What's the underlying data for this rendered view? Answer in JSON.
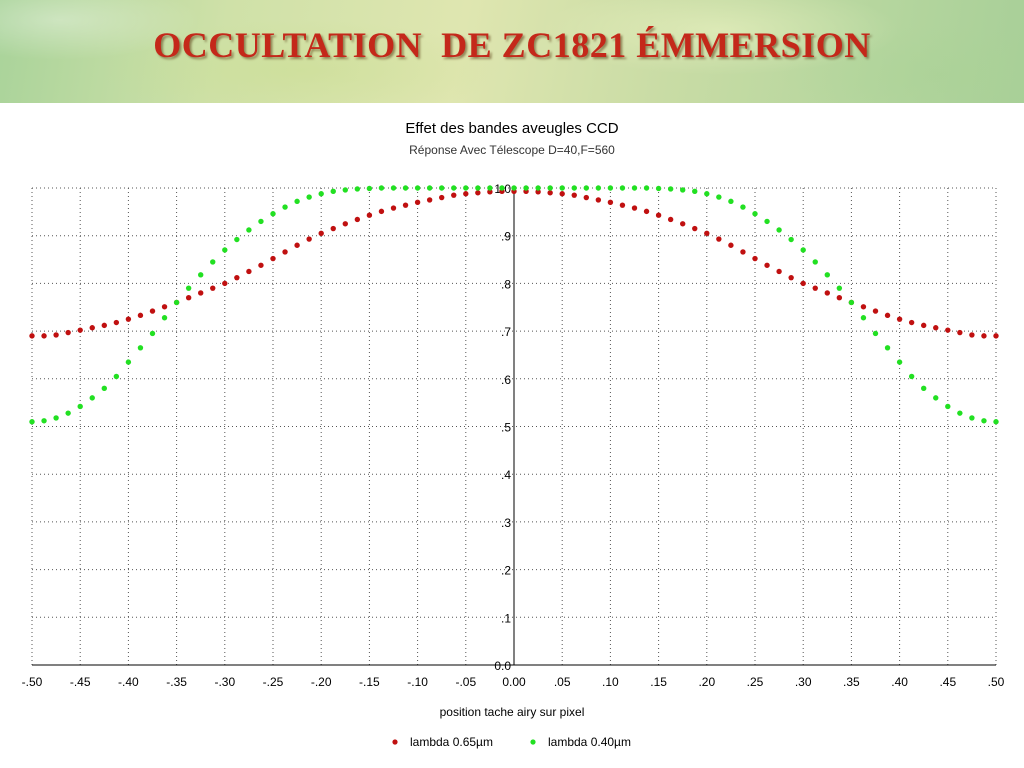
{
  "slide": {
    "title": "OCCULTATION  DE ZC1821 ÉMMERSION"
  },
  "chart_data": {
    "type": "scatter",
    "title": "Effet des bandes aveugles CCD",
    "subtitle": "Réponse Avec Télescope D=40,F=560",
    "xlabel": "position tache airy sur pixel",
    "ylabel": "",
    "xlim": [
      -0.5,
      0.5
    ],
    "ylim": [
      0.0,
      1.0
    ],
    "x_tick_labels": [
      "-.50",
      "-.45",
      "-.40",
      "-.35",
      "-.30",
      "-.25",
      "-.20",
      "-.15",
      "-.10",
      "-.05",
      "0.00",
      ".05",
      ".10",
      ".15",
      ".20",
      ".25",
      ".30",
      ".35",
      ".40",
      ".45",
      ".50"
    ],
    "y_tick_labels": [
      "0.0",
      ".1",
      ".2",
      ".3",
      ".4",
      ".5",
      ".6",
      ".7",
      ".8",
      ".9",
      "1.0"
    ],
    "grid": true,
    "legend": "bottom",
    "series": [
      {
        "name": "lambda 0.65µm",
        "color": "#c01010",
        "points": [
          [
            -0.5,
            0.69
          ],
          [
            -0.4875,
            0.69
          ],
          [
            -0.475,
            0.692
          ],
          [
            -0.4625,
            0.697
          ],
          [
            -0.45,
            0.702
          ],
          [
            -0.4375,
            0.707
          ],
          [
            -0.425,
            0.712
          ],
          [
            -0.4125,
            0.718
          ],
          [
            -0.4,
            0.725
          ],
          [
            -0.3875,
            0.733
          ],
          [
            -0.375,
            0.742
          ],
          [
            -0.3625,
            0.751
          ],
          [
            -0.35,
            0.76
          ],
          [
            -0.3375,
            0.77
          ],
          [
            -0.325,
            0.78
          ],
          [
            -0.3125,
            0.79
          ],
          [
            -0.3,
            0.8
          ],
          [
            -0.2875,
            0.812
          ],
          [
            -0.275,
            0.825
          ],
          [
            -0.2625,
            0.838
          ],
          [
            -0.25,
            0.852
          ],
          [
            -0.2375,
            0.866
          ],
          [
            -0.225,
            0.88
          ],
          [
            -0.2125,
            0.893
          ],
          [
            -0.2,
            0.905
          ],
          [
            -0.1875,
            0.915
          ],
          [
            -0.175,
            0.925
          ],
          [
            -0.1625,
            0.934
          ],
          [
            -0.15,
            0.943
          ],
          [
            -0.1375,
            0.951
          ],
          [
            -0.125,
            0.958
          ],
          [
            -0.1125,
            0.964
          ],
          [
            -0.1,
            0.97
          ],
          [
            -0.0875,
            0.975
          ],
          [
            -0.075,
            0.98
          ],
          [
            -0.0625,
            0.985
          ],
          [
            -0.05,
            0.988
          ],
          [
            -0.0375,
            0.99
          ],
          [
            -0.025,
            0.992
          ],
          [
            -0.0125,
            0.993
          ],
          [
            0.0,
            0.993
          ],
          [
            0.0125,
            0.993
          ],
          [
            0.025,
            0.992
          ],
          [
            0.0375,
            0.99
          ],
          [
            0.05,
            0.988
          ],
          [
            0.0625,
            0.985
          ],
          [
            0.075,
            0.98
          ],
          [
            0.0875,
            0.975
          ],
          [
            0.1,
            0.97
          ],
          [
            0.1125,
            0.964
          ],
          [
            0.125,
            0.958
          ],
          [
            0.1375,
            0.951
          ],
          [
            0.15,
            0.943
          ],
          [
            0.1625,
            0.934
          ],
          [
            0.175,
            0.925
          ],
          [
            0.1875,
            0.915
          ],
          [
            0.2,
            0.905
          ],
          [
            0.2125,
            0.893
          ],
          [
            0.225,
            0.88
          ],
          [
            0.2375,
            0.866
          ],
          [
            0.25,
            0.852
          ],
          [
            0.2625,
            0.838
          ],
          [
            0.275,
            0.825
          ],
          [
            0.2875,
            0.812
          ],
          [
            0.3,
            0.8
          ],
          [
            0.3125,
            0.79
          ],
          [
            0.325,
            0.78
          ],
          [
            0.3375,
            0.77
          ],
          [
            0.35,
            0.76
          ],
          [
            0.3625,
            0.751
          ],
          [
            0.375,
            0.742
          ],
          [
            0.3875,
            0.733
          ],
          [
            0.4,
            0.725
          ],
          [
            0.4125,
            0.718
          ],
          [
            0.425,
            0.712
          ],
          [
            0.4375,
            0.707
          ],
          [
            0.45,
            0.702
          ],
          [
            0.4625,
            0.697
          ],
          [
            0.475,
            0.692
          ],
          [
            0.4875,
            0.69
          ],
          [
            0.5,
            0.69
          ]
        ]
      },
      {
        "name": "lambda 0.40µm",
        "color": "#22e022",
        "points": [
          [
            -0.5,
            0.51
          ],
          [
            -0.4875,
            0.512
          ],
          [
            -0.475,
            0.518
          ],
          [
            -0.4625,
            0.528
          ],
          [
            -0.45,
            0.542
          ],
          [
            -0.4375,
            0.56
          ],
          [
            -0.425,
            0.58
          ],
          [
            -0.4125,
            0.605
          ],
          [
            -0.4,
            0.635
          ],
          [
            -0.3875,
            0.665
          ],
          [
            -0.375,
            0.695
          ],
          [
            -0.3625,
            0.728
          ],
          [
            -0.35,
            0.76
          ],
          [
            -0.3375,
            0.79
          ],
          [
            -0.325,
            0.818
          ],
          [
            -0.3125,
            0.845
          ],
          [
            -0.3,
            0.87
          ],
          [
            -0.2875,
            0.892
          ],
          [
            -0.275,
            0.912
          ],
          [
            -0.2625,
            0.93
          ],
          [
            -0.25,
            0.946
          ],
          [
            -0.2375,
            0.96
          ],
          [
            -0.225,
            0.972
          ],
          [
            -0.2125,
            0.981
          ],
          [
            -0.2,
            0.988
          ],
          [
            -0.1875,
            0.993
          ],
          [
            -0.175,
            0.996
          ],
          [
            -0.1625,
            0.998
          ],
          [
            -0.15,
            0.999
          ],
          [
            -0.1375,
            1.0
          ],
          [
            -0.125,
            1.0
          ],
          [
            -0.1125,
            1.0
          ],
          [
            -0.1,
            1.0
          ],
          [
            -0.0875,
            1.0
          ],
          [
            -0.075,
            1.0
          ],
          [
            -0.0625,
            1.0
          ],
          [
            -0.05,
            1.0
          ],
          [
            -0.0375,
            1.0
          ],
          [
            -0.025,
            1.0
          ],
          [
            -0.0125,
            1.0
          ],
          [
            0.0,
            1.0
          ],
          [
            0.0125,
            1.0
          ],
          [
            0.025,
            1.0
          ],
          [
            0.0375,
            1.0
          ],
          [
            0.05,
            1.0
          ],
          [
            0.0625,
            1.0
          ],
          [
            0.075,
            1.0
          ],
          [
            0.0875,
            1.0
          ],
          [
            0.1,
            1.0
          ],
          [
            0.1125,
            1.0
          ],
          [
            0.125,
            1.0
          ],
          [
            0.1375,
            1.0
          ],
          [
            0.15,
            0.999
          ],
          [
            0.1625,
            0.998
          ],
          [
            0.175,
            0.996
          ],
          [
            0.1875,
            0.993
          ],
          [
            0.2,
            0.988
          ],
          [
            0.2125,
            0.981
          ],
          [
            0.225,
            0.972
          ],
          [
            0.2375,
            0.96
          ],
          [
            0.25,
            0.946
          ],
          [
            0.2625,
            0.93
          ],
          [
            0.275,
            0.912
          ],
          [
            0.2875,
            0.892
          ],
          [
            0.3,
            0.87
          ],
          [
            0.3125,
            0.845
          ],
          [
            0.325,
            0.818
          ],
          [
            0.3375,
            0.79
          ],
          [
            0.35,
            0.76
          ],
          [
            0.3625,
            0.728
          ],
          [
            0.375,
            0.695
          ],
          [
            0.3875,
            0.665
          ],
          [
            0.4,
            0.635
          ],
          [
            0.4125,
            0.605
          ],
          [
            0.425,
            0.58
          ],
          [
            0.4375,
            0.56
          ],
          [
            0.45,
            0.542
          ],
          [
            0.4625,
            0.528
          ],
          [
            0.475,
            0.518
          ],
          [
            0.4875,
            0.512
          ],
          [
            0.5,
            0.51
          ]
        ]
      }
    ]
  }
}
